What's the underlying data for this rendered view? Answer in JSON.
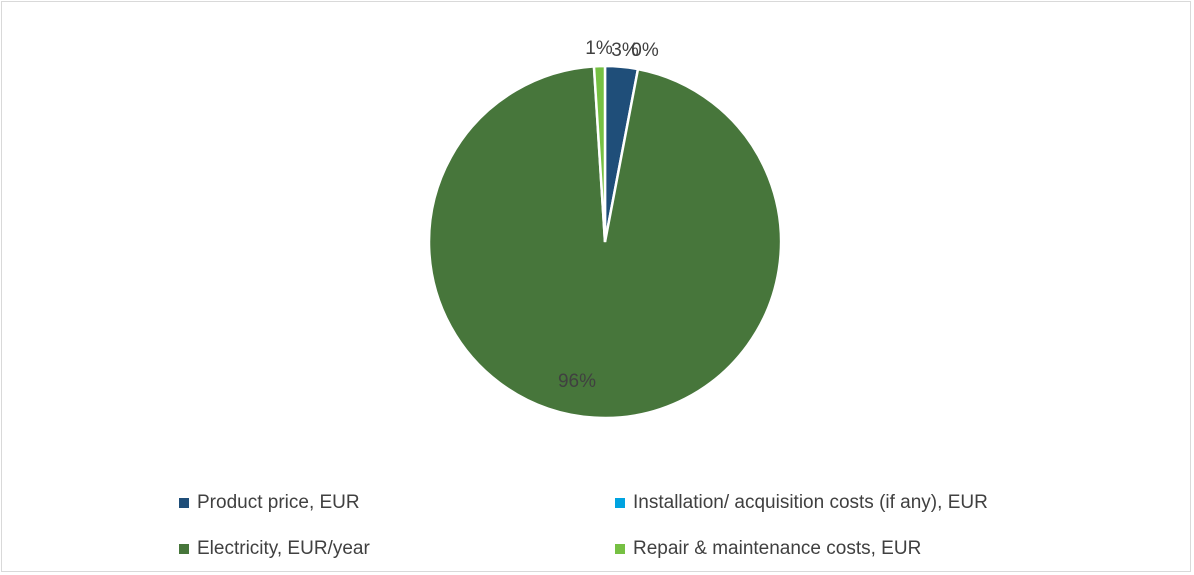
{
  "chart_data": {
    "type": "pie",
    "title": "",
    "legend_position": "bottom",
    "slices": [
      {
        "label": "Product price, EUR",
        "value": 3,
        "display": "3%",
        "color": "#1f4e79"
      },
      {
        "label": "Installation/ acquisition costs (if any), EUR",
        "value": 0,
        "display": "0%",
        "color": "#00a3e0"
      },
      {
        "label": "Electricity, EUR/year",
        "value": 96,
        "display": "96%",
        "color": "#47763b"
      },
      {
        "label": "Repair & maintenance costs, EUR",
        "value": 1,
        "display": "1%",
        "color": "#76c043"
      }
    ]
  }
}
